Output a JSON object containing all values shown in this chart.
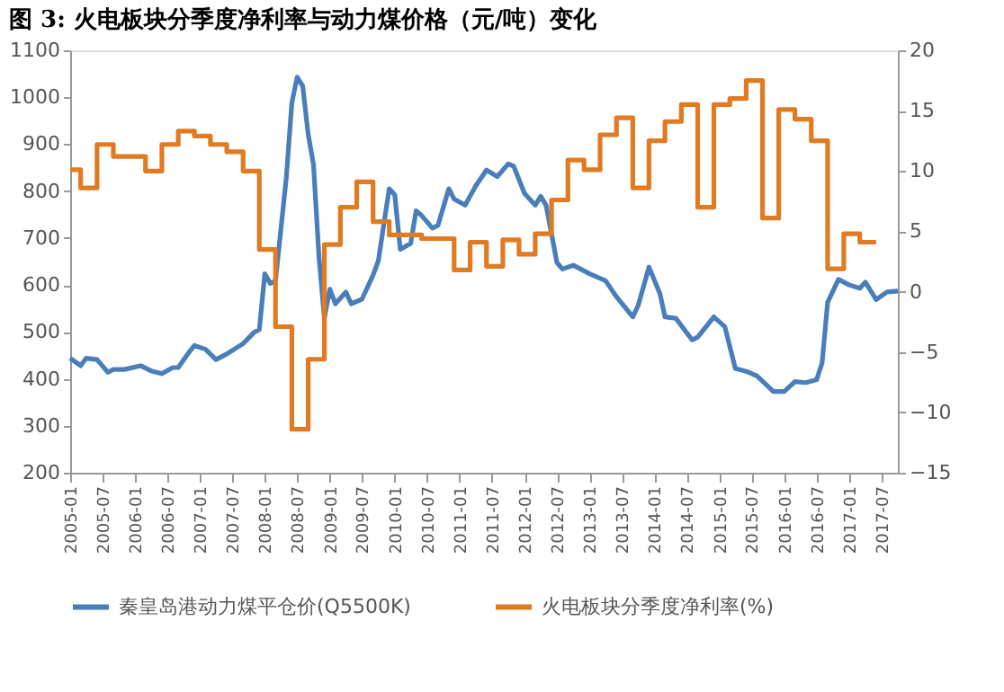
{
  "chart_data": {
    "type": "line",
    "title": "图 3: 火电板块分季度净利率与动力煤价格（元/吨）变化",
    "legend": "bottom",
    "grid": false,
    "marker": "none",
    "line_style": "solid",
    "xlim": [
      "2005-01",
      "2017-10"
    ],
    "xticks": [
      "2005-01",
      "2005-07",
      "2006-01",
      "2006-07",
      "2007-01",
      "2007-07",
      "2008-01",
      "2008-07",
      "2009-01",
      "2009-07",
      "2010-01",
      "2010-07",
      "2011-01",
      "2011-07",
      "2012-01",
      "2012-07",
      "2013-01",
      "2013-07",
      "2014-01",
      "2014-07",
      "2015-01",
      "2015-07",
      "2016-01",
      "2016-07",
      "2017-01",
      "2017-07"
    ],
    "ylim": [
      200,
      1100
    ],
    "yticks": [
      200,
      300,
      400,
      500,
      600,
      700,
      800,
      900,
      1000,
      1100
    ],
    "y2lim": [
      -15,
      20
    ],
    "y2ticks": [
      -15,
      -10,
      -5,
      0,
      5,
      10,
      15,
      20
    ],
    "series": [
      {
        "name": "秦皇岛港动力煤平仓价(Q5500K)",
        "color": "#4a7ebb",
        "type": "line",
        "axis": "y",
        "x": [
          "2005-01",
          "2005-03",
          "2005-04",
          "2005-06",
          "2005-08",
          "2005-09",
          "2005-11",
          "2006-02",
          "2006-04",
          "2006-06",
          "2006-08",
          "2006-09",
          "2006-11",
          "2006-12",
          "2007-02",
          "2007-04",
          "2007-06",
          "2007-09",
          "2007-11",
          "2007-12",
          "2008-01",
          "2008-02",
          "2008-03",
          "2008-05",
          "2008-06",
          "2008-07",
          "2008-08",
          "2008-09",
          "2008-10",
          "2008-11",
          "2008-12",
          "2009-01",
          "2009-02",
          "2009-04",
          "2009-05",
          "2009-07",
          "2009-09",
          "2009-10",
          "2009-11",
          "2009-12",
          "2010-01",
          "2010-02",
          "2010-04",
          "2010-05",
          "2010-06",
          "2010-08",
          "2010-09",
          "2010-11",
          "2010-12",
          "2011-02",
          "2011-04",
          "2011-06",
          "2011-08",
          "2011-10",
          "2011-11",
          "2012-01",
          "2012-03",
          "2012-04",
          "2012-05",
          "2012-07",
          "2012-08",
          "2012-10",
          "2013-01",
          "2013-04",
          "2013-06",
          "2013-09",
          "2013-10",
          "2013-12",
          "2014-02",
          "2014-03",
          "2014-05",
          "2014-08",
          "2014-09",
          "2014-12",
          "2015-02",
          "2015-04",
          "2015-06",
          "2015-08",
          "2015-11",
          "2016-01",
          "2016-03",
          "2016-05",
          "2016-07",
          "2016-08",
          "2016-09",
          "2016-11",
          "2017-01",
          "2017-03",
          "2017-04",
          "2017-06",
          "2017-08",
          "2017-10"
        ],
        "values": [
          444,
          428,
          444,
          441,
          414,
          420,
          420,
          428,
          417,
          411,
          424,
          424,
          457,
          471,
          463,
          441,
          453,
          475,
          499,
          505,
          624,
          603,
          609,
          829,
          988,
          1043,
          1024,
          921,
          856,
          658,
          530,
          591,
          560,
          585,
          560,
          570,
          621,
          652,
          731,
          805,
          792,
          676,
          689,
          758,
          748,
          721,
          727,
          805,
          783,
          770,
          811,
          845,
          831,
          858,
          853,
          795,
          770,
          789,
          770,
          648,
          634,
          642,
          624,
          609,
          575,
          532,
          556,
          638,
          581,
          532,
          529,
          483,
          489,
          532,
          511,
          422,
          416,
          406,
          373,
          373,
          394,
          392,
          398,
          434,
          563,
          612,
          600,
          593,
          606,
          569,
          585,
          587
        ]
      },
      {
        "name": "火电板块分季度净利率(%)",
        "color": "#e07b22",
        "type": "step",
        "axis": "y2",
        "x": [
          "2005-01",
          "2005-03",
          "2005-06",
          "2005-09",
          "2006-03",
          "2006-06",
          "2006-09",
          "2006-12",
          "2007-03",
          "2007-06",
          "2007-09",
          "2007-12",
          "2008-03",
          "2008-06",
          "2008-09",
          "2008-12",
          "2009-03",
          "2009-06",
          "2009-09",
          "2009-12",
          "2010-06",
          "2010-12",
          "2011-03",
          "2011-06",
          "2011-09",
          "2011-12",
          "2012-03",
          "2012-06",
          "2012-09",
          "2012-12",
          "2013-03",
          "2013-06",
          "2013-09",
          "2013-12",
          "2014-03",
          "2014-06",
          "2014-09",
          "2014-12",
          "2015-03",
          "2015-06",
          "2015-09",
          "2015-12",
          "2016-03",
          "2016-06",
          "2016-09",
          "2016-12",
          "2017-03",
          "2017-06"
        ],
        "values": [
          10.1,
          8.6,
          12.2,
          11.2,
          10.0,
          12.2,
          13.3,
          12.9,
          12.2,
          11.6,
          10.0,
          3.5,
          -2.9,
          -11.4,
          -5.6,
          3.9,
          7.0,
          9.1,
          5.8,
          4.7,
          4.4,
          1.8,
          4.1,
          2.1,
          4.3,
          3.1,
          4.8,
          7.6,
          10.9,
          10.1,
          13.0,
          14.4,
          8.6,
          12.5,
          14.1,
          15.5,
          7.0,
          15.5,
          16.0,
          17.5,
          6.1,
          15.1,
          14.3,
          12.5,
          1.9,
          4.8,
          4.1,
          4.1
        ]
      }
    ]
  }
}
